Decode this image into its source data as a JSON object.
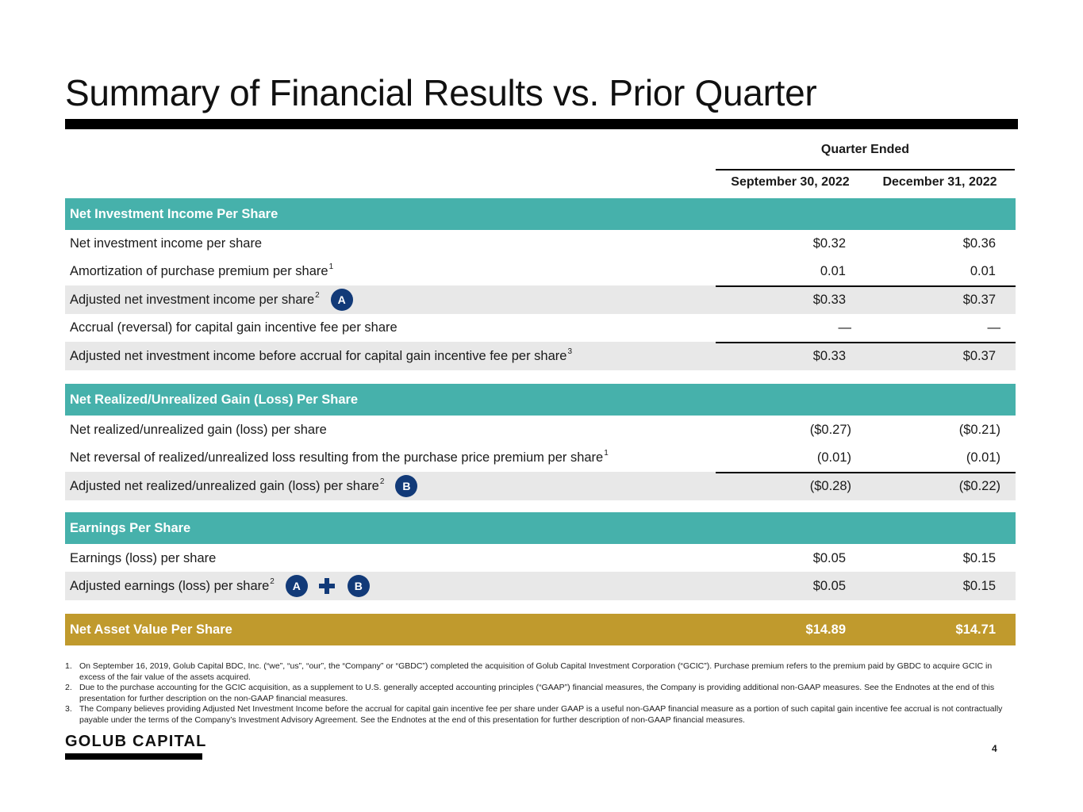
{
  "title": "Summary of Financial Results vs. Prior Quarter",
  "header": {
    "quarter_ended": "Quarter Ended",
    "col1": "September 30, 2022",
    "col2": "December 31, 2022"
  },
  "sections": {
    "nii": {
      "title": "Net Investment Income Per Share",
      "rows": [
        {
          "label": "Net investment income per share",
          "sup": "",
          "v1": "$0.32",
          "v2": "$0.36"
        },
        {
          "label": "Amortization of purchase premium per share",
          "sup": "1",
          "v1": "0.01",
          "v2": "0.01"
        },
        {
          "label": "Adjusted net investment income per share",
          "sup": "2",
          "badge": "A",
          "v1": "$0.33",
          "v2": "$0.37"
        },
        {
          "label": "Accrual (reversal) for capital gain incentive fee per share",
          "sup": "",
          "v1": "—",
          "v2": "—"
        },
        {
          "label": "Adjusted net investment income before accrual for capital gain incentive fee per share",
          "sup": "3",
          "v1": "$0.33",
          "v2": "$0.37"
        }
      ]
    },
    "gain": {
      "title": "Net Realized/Unrealized Gain (Loss) Per Share",
      "rows": [
        {
          "label": "Net realized/unrealized gain (loss) per share",
          "sup": "",
          "v1": "($0.27)",
          "v2": "($0.21)"
        },
        {
          "label": "Net reversal of realized/unrealized loss resulting from the purchase price premium per share",
          "sup": "1",
          "v1": "(0.01)",
          "v2": "(0.01)"
        },
        {
          "label": "Adjusted net realized/unrealized gain (loss) per share",
          "sup": "2",
          "badge": "B",
          "v1": "($0.28)",
          "v2": "($0.22)"
        }
      ]
    },
    "eps": {
      "title": "Earnings Per Share",
      "rows": [
        {
          "label": "Earnings (loss) per share",
          "sup": "",
          "v1": "$0.05",
          "v2": "$0.15"
        },
        {
          "label": "Adjusted earnings (loss) per share",
          "sup": "2",
          "badge1": "A",
          "badge2": "B",
          "v1": "$0.05",
          "v2": "$0.15"
        }
      ]
    },
    "nav": {
      "title": "Net Asset Value Per Share",
      "v1": "$14.89",
      "v2": "$14.71"
    }
  },
  "footnotes": [
    {
      "num": "1.",
      "text": "On September 16, 2019, Golub Capital BDC, Inc. (“we”, “us”, “our”, the “Company” or “GBDC”) completed the acquisition of Golub Capital Investment Corporation (“GCIC”). Purchase premium refers to the premium paid by GBDC to acquire GCIC in excess of the fair value of the assets acquired."
    },
    {
      "num": "2.",
      "text": "Due to the purchase accounting for the GCIC acquisition, as a supplement to U.S. generally accepted accounting principles (“GAAP”) financial measures, the Company is providing additional non-GAAP measures. See the Endnotes at the end of this presentation for further description on the non-GAAP financial measures."
    },
    {
      "num": "3.",
      "text": "The Company believes providing Adjusted Net Investment Income before the accrual for capital gain incentive fee per share under GAAP is a useful non-GAAP financial measure as a portion of such capital gain incentive fee accrual is not contractually payable under the terms of the Company’s Investment Advisory Agreement. See the Endnotes at the end of this presentation for further description of non-GAAP financial measures."
    }
  ],
  "footer": {
    "logo": "GOLUB CAPITAL",
    "page": "4"
  },
  "colors": {
    "section_teal": "#46b1ab",
    "section_gold": "#c09a2d",
    "badge_navy": "#123a78",
    "row_shade": "#e8e8e8"
  }
}
